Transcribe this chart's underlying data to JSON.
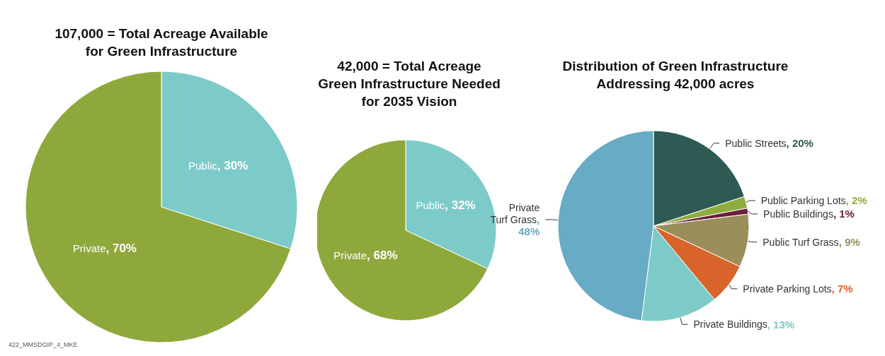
{
  "chart_data": [
    {
      "type": "pie",
      "title": "107,000 = Total Acreage Available\nfor Green Infrastructure",
      "categories": [
        "Public",
        "Private"
      ],
      "values": [
        30,
        70
      ],
      "value_labels": [
        ", 30%",
        ", 70%"
      ],
      "colors": [
        "#7ccbc8",
        "#8fa83c"
      ],
      "legend": false,
      "annotations": [
        "422_MMSDGIP_4_MKE"
      ]
    },
    {
      "type": "pie",
      "title": "42,000 = Total Acreage\nGreen Infrastructure Needed\nfor 2035 Vision",
      "categories": [
        "Public",
        "Private"
      ],
      "values": [
        32,
        68
      ],
      "value_labels": [
        ", 32%",
        ", 68%"
      ],
      "colors": [
        "#7ccbc8",
        "#8fa83c"
      ],
      "legend": false
    },
    {
      "type": "pie",
      "title": "Distribution of Green Infrastructure\nAddressing 42,000 acres",
      "categories": [
        "Public Streets",
        "Public Parking Lots",
        "Public Buildings",
        "Public Turf Grass",
        "Private Parking Lots",
        "Private Buildings",
        "Private Turf Grass"
      ],
      "values": [
        20,
        2,
        1,
        9,
        7,
        13,
        48
      ],
      "value_labels": [
        ", 20%",
        ", 2%",
        ", 1%",
        ", 9%",
        ", 7%",
        ", 13%",
        ", 48%"
      ],
      "colors": [
        "#2d5a52",
        "#8fac3e",
        "#6b1f3a",
        "#9a8e5a",
        "#d8642c",
        "#7ccbc8",
        "#67abc4"
      ],
      "legend": false
    }
  ]
}
